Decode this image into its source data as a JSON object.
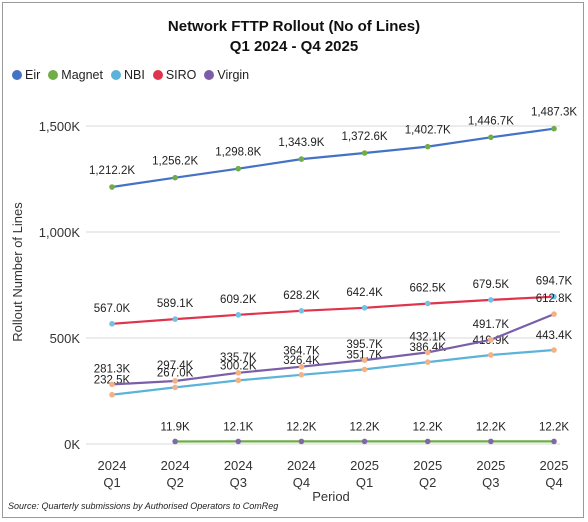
{
  "chart_data": {
    "type": "line",
    "title": "Network FTTP Rollout (No of Lines)",
    "subtitle": "Q1 2024 - Q4 2025",
    "xlabel": "Period",
    "ylabel": "Rollout Number of Lines",
    "categories": [
      [
        "2024",
        "Q1"
      ],
      [
        "2024",
        "Q2"
      ],
      [
        "2024",
        "Q3"
      ],
      [
        "2024",
        "Q4"
      ],
      [
        "2025",
        "Q1"
      ],
      [
        "2025",
        "Q2"
      ],
      [
        "2025",
        "Q3"
      ],
      [
        "2025",
        "Q4"
      ]
    ],
    "ylim": [
      0,
      1700000
    ],
    "yticks": [
      {
        "value": 0,
        "label": "0K"
      },
      {
        "value": 500000,
        "label": "500K"
      },
      {
        "value": 1000000,
        "label": "1,000K"
      },
      {
        "value": 1500000,
        "label": "1,500K"
      }
    ],
    "grid": "horizontal",
    "legend_position": "top-left",
    "series": [
      {
        "name": "Eir",
        "color": "#4472c4",
        "marker": "#70ad47",
        "values": [
          1212200,
          1256200,
          1298800,
          1343900,
          1372600,
          1402700,
          1446700,
          1487300
        ],
        "labels": [
          "1,212.2K",
          "1,256.2K",
          "1,298.8K",
          "1,343.9K",
          "1,372.6K",
          "1,402.7K",
          "1,446.7K",
          "1,487.3K"
        ]
      },
      {
        "name": "Magnet",
        "color": "#70ad47",
        "marker": "#7f6aa6",
        "values": [
          null,
          11900,
          12100,
          12200,
          12200,
          12200,
          12200,
          12200
        ],
        "labels": [
          "",
          "11.9K",
          "12.1K",
          "12.2K",
          "12.2K",
          "12.2K",
          "12.2K",
          "12.2K"
        ]
      },
      {
        "name": "NBI",
        "color": "#5bb3d9",
        "marker": "#f4b183",
        "values": [
          232500,
          267000,
          300200,
          326400,
          351700,
          386400,
          419900,
          443400
        ],
        "labels": [
          "232.5K",
          "267.0K",
          "300.2K",
          "326.4K",
          "351.7K",
          "386.4K",
          "419.9K",
          "443.4K"
        ]
      },
      {
        "name": "SIRO",
        "color": "#e0334c",
        "marker": "#6fc3e8",
        "values": [
          567000,
          589100,
          609200,
          628200,
          642400,
          662500,
          679500,
          694700
        ],
        "labels": [
          "567.0K",
          "589.1K",
          "609.2K",
          "628.2K",
          "642.4K",
          "662.5K",
          "679.5K",
          "694.7K"
        ]
      },
      {
        "name": "Virgin",
        "color": "#7a5fa8",
        "marker": "#f4b183",
        "values": [
          281300,
          297400,
          335700,
          364700,
          395700,
          432100,
          491700,
          612800
        ],
        "labels": [
          "281.3K",
          "297.4K",
          "335.7K",
          "364.7K",
          "395.7K",
          "432.1K",
          "491.7K",
          "612.8K"
        ]
      }
    ],
    "source": "Source: Quarterly submissions by Authorised Operators to ComReg"
  }
}
